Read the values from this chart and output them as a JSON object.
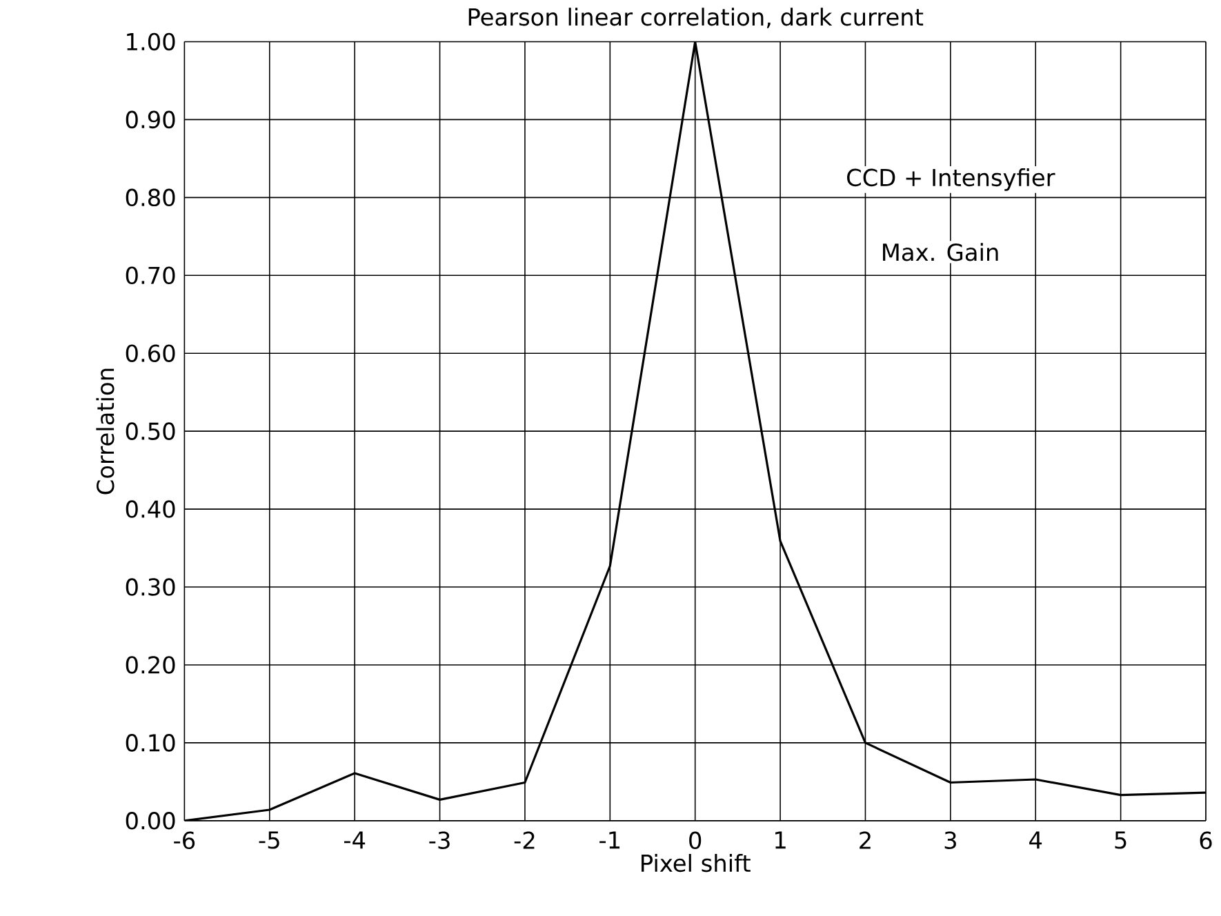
{
  "chart_data": {
    "type": "line",
    "title": "Pearson linear correlation, dark current",
    "xlabel": "Pixel  shift",
    "ylabel": "Correlation",
    "annotations": [
      "CCD + Intensyfier",
      "Max. Gain"
    ],
    "x": [
      -6,
      -5,
      -4,
      -3,
      -2,
      -1,
      0,
      1,
      2,
      3,
      4,
      5,
      6
    ],
    "series": [
      {
        "color": "#000000",
        "values": [
          0.0,
          0.014,
          0.061,
          0.027,
          0.049,
          0.327,
          1.0,
          0.359,
          0.1,
          0.049,
          0.053,
          0.033,
          0.036
        ]
      }
    ],
    "xlim": [
      -6,
      6
    ],
    "ylim": [
      0,
      1
    ],
    "xticks": [
      -6,
      -5,
      -4,
      -3,
      -2,
      -1,
      0,
      1,
      2,
      3,
      4,
      5,
      6
    ],
    "yticks": [
      {
        "value": 0,
        "label": "0.00"
      },
      {
        "value": 0.1,
        "label": "0.10"
      },
      {
        "value": 0.2,
        "label": "0.20"
      },
      {
        "value": 0.3,
        "label": "0.30"
      },
      {
        "value": 0.4,
        "label": "0.40"
      },
      {
        "value": 0.5,
        "label": "0.50"
      },
      {
        "value": 0.6,
        "label": "0.60"
      },
      {
        "value": 0.7,
        "label": "0.70"
      },
      {
        "value": 0.8,
        "label": "0.80"
      },
      {
        "value": 0.9,
        "label": "0.90"
      },
      {
        "value": 1,
        "label": "1.00"
      }
    ],
    "grid": true,
    "marker": "none",
    "line_style": "solid"
  }
}
